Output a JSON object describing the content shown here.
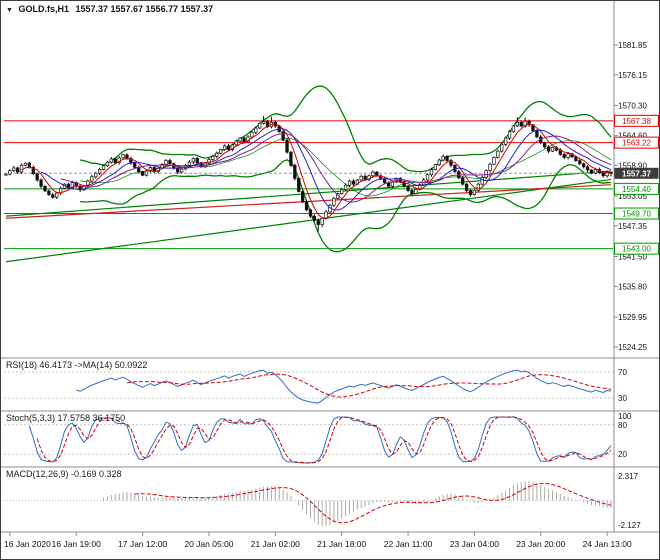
{
  "header": {
    "dropdown_icon": "▼",
    "symbol_period": "GOLD.fs,H1",
    "ohlc": "1557.37 1557.67 1556.77 1557.37"
  },
  "colors": {
    "up": "#ffffff",
    "down": "#111111",
    "wick": "#111111",
    "band": "#008000",
    "ribbon": [
      "#d40000",
      "#2222cc",
      "#882288"
    ],
    "level_red": "#e60000",
    "level_green": "#009900",
    "trend_green": "#008000",
    "trend_red": "#cc2222",
    "current_tag_bg": "#3d3d3d",
    "indicator_line": "#2f6fc4",
    "indicator_signal": "#d40000",
    "macd_hist": "#aaaaaa",
    "divider": "#8c8c8c",
    "dashed_level": "#c0c0c0",
    "axis_text": "#111111"
  },
  "chart_data": {
    "type": "candlestick",
    "symbol": "GOLD.fs",
    "timeframe": "H1",
    "current_price": "1557.37",
    "y_axis_labels": [
      "1581.85",
      "1576.15",
      "1570.30",
      "1564.60",
      "1558.90",
      "1553.05",
      "1547.35",
      "1541.50",
      "1535.80",
      "1529.95",
      "1524.25"
    ],
    "x_labels": [
      "16 Jan 2020",
      "16 Jan 19:00",
      "17 Jan 12:00",
      "20 Jan 05:00",
      "21 Jan 02:00",
      "21 Jan 18:00",
      "22 Jan 11:00",
      "23 Jan 04:00",
      "23 Jan 20:00",
      "24 Jan 13:00"
    ],
    "x_label_indices": [
      1,
      18,
      35,
      52,
      69,
      86,
      103,
      120,
      137,
      154
    ],
    "price_max": 1586.8,
    "price_min": 1523.1,
    "wick": 0.45,
    "closes": [
      1557.2,
      1557.9,
      1558.4,
      1557.6,
      1558.9,
      1559.3,
      1558.5,
      1557.3,
      1556.1,
      1554.9,
      1554.0,
      1553.3,
      1552.8,
      1553.6,
      1554.5,
      1555.3,
      1554.6,
      1555.6,
      1554.9,
      1554.2,
      1555.0,
      1555.9,
      1556.7,
      1557.4,
      1558.1,
      1558.8,
      1559.5,
      1560.1,
      1559.4,
      1560.3,
      1560.9,
      1560.2,
      1559.3,
      1558.5,
      1557.7,
      1557.0,
      1557.8,
      1558.5,
      1557.7,
      1558.3,
      1559.1,
      1559.8,
      1559.2,
      1558.4,
      1557.6,
      1558.2,
      1558.9,
      1559.5,
      1560.2,
      1559.4,
      1558.6,
      1559.3,
      1560.0,
      1560.6,
      1561.2,
      1561.9,
      1562.6,
      1561.9,
      1562.8,
      1563.5,
      1564.1,
      1563.4,
      1564.3,
      1565.2,
      1566.0,
      1566.9,
      1567.2,
      1566.3,
      1567.1,
      1566.4,
      1565.3,
      1563.7,
      1561.4,
      1558.9,
      1556.4,
      1553.9,
      1551.9,
      1550.4,
      1549.2,
      1548.4,
      1547.6,
      1548.8,
      1550.0,
      1551.3,
      1552.6,
      1553.5,
      1554.3,
      1555.1,
      1555.9,
      1555.3,
      1556.1,
      1556.8,
      1556.2,
      1556.9,
      1557.6,
      1556.9,
      1556.3,
      1555.6,
      1554.9,
      1555.7,
      1556.4,
      1555.8,
      1554.9,
      1554.1,
      1553.5,
      1554.3,
      1555.2,
      1556.1,
      1557.1,
      1558.1,
      1559.0,
      1559.9,
      1560.6,
      1559.8,
      1558.9,
      1557.7,
      1556.5,
      1555.3,
      1554.1,
      1553.3,
      1554.1,
      1555.3,
      1556.6,
      1557.9,
      1559.1,
      1560.4,
      1561.6,
      1562.9,
      1564.1,
      1565.3,
      1566.4,
      1567.1,
      1566.4,
      1567.3,
      1566.6,
      1565.5,
      1564.3,
      1563.2,
      1562.4,
      1561.6,
      1562.3,
      1561.8,
      1561.0,
      1560.4,
      1561.1,
      1560.5,
      1559.8,
      1559.2,
      1558.6,
      1558.0,
      1557.4,
      1558.1,
      1557.5,
      1556.9,
      1557.6,
      1557.37
    ],
    "hl_overrides": {
      "66": {
        "h": 1568.3
      },
      "68": {
        "h": 1568.2
      },
      "80": {
        "l": 1546.3
      },
      "81": {
        "l": 1547.1
      },
      "131": {
        "h": 1568.1
      },
      "133": {
        "h": 1568.0
      },
      "155": {
        "h": 1557.67,
        "l": 1556.77
      }
    },
    "levels": [
      {
        "price": 1567.38,
        "label": "1567.38",
        "color": "red"
      },
      {
        "price": 1563.22,
        "label": "1563.22",
        "color": "red"
      },
      {
        "price": 1554.4,
        "label": "1554.40",
        "color": "green"
      },
      {
        "price": 1549.7,
        "label": "1549.70",
        "color": "green"
      },
      {
        "price": 1543.0,
        "label": "1543.00",
        "color": "green"
      }
    ],
    "trendlines": [
      {
        "i1": 0,
        "p1": 1540.5,
        "i2": 155,
        "p2": 1556.2,
        "color": "green"
      },
      {
        "i1": 0,
        "p1": 1549.2,
        "i2": 155,
        "p2": 1557.8,
        "color": "green"
      },
      {
        "i1": 0,
        "p1": 1548.8,
        "i2": 155,
        "p2": 1555.2,
        "color": "red"
      }
    ],
    "bands": {
      "period": 20,
      "deviation": 2
    },
    "ribbon_periods": [
      5,
      10,
      15
    ],
    "indicators": {
      "rsi": {
        "label": "RSI(18) 46.4173 ->MA(14) 50.0922",
        "period": 18,
        "ma_period": 14,
        "levels": [
          70,
          30
        ]
      },
      "stoch": {
        "label": "Stoch(5,3,3) 17.5758 36.1750",
        "k": 5,
        "slowing": 3,
        "d": 3,
        "levels": [
          80,
          20
        ],
        "axis_top": "100"
      },
      "macd": {
        "label": "MACD(12,26,9) -0.169 0.328",
        "fast": 12,
        "slow": 26,
        "signal": 9,
        "axis": [
          "2.317",
          "-2.127"
        ]
      }
    }
  }
}
